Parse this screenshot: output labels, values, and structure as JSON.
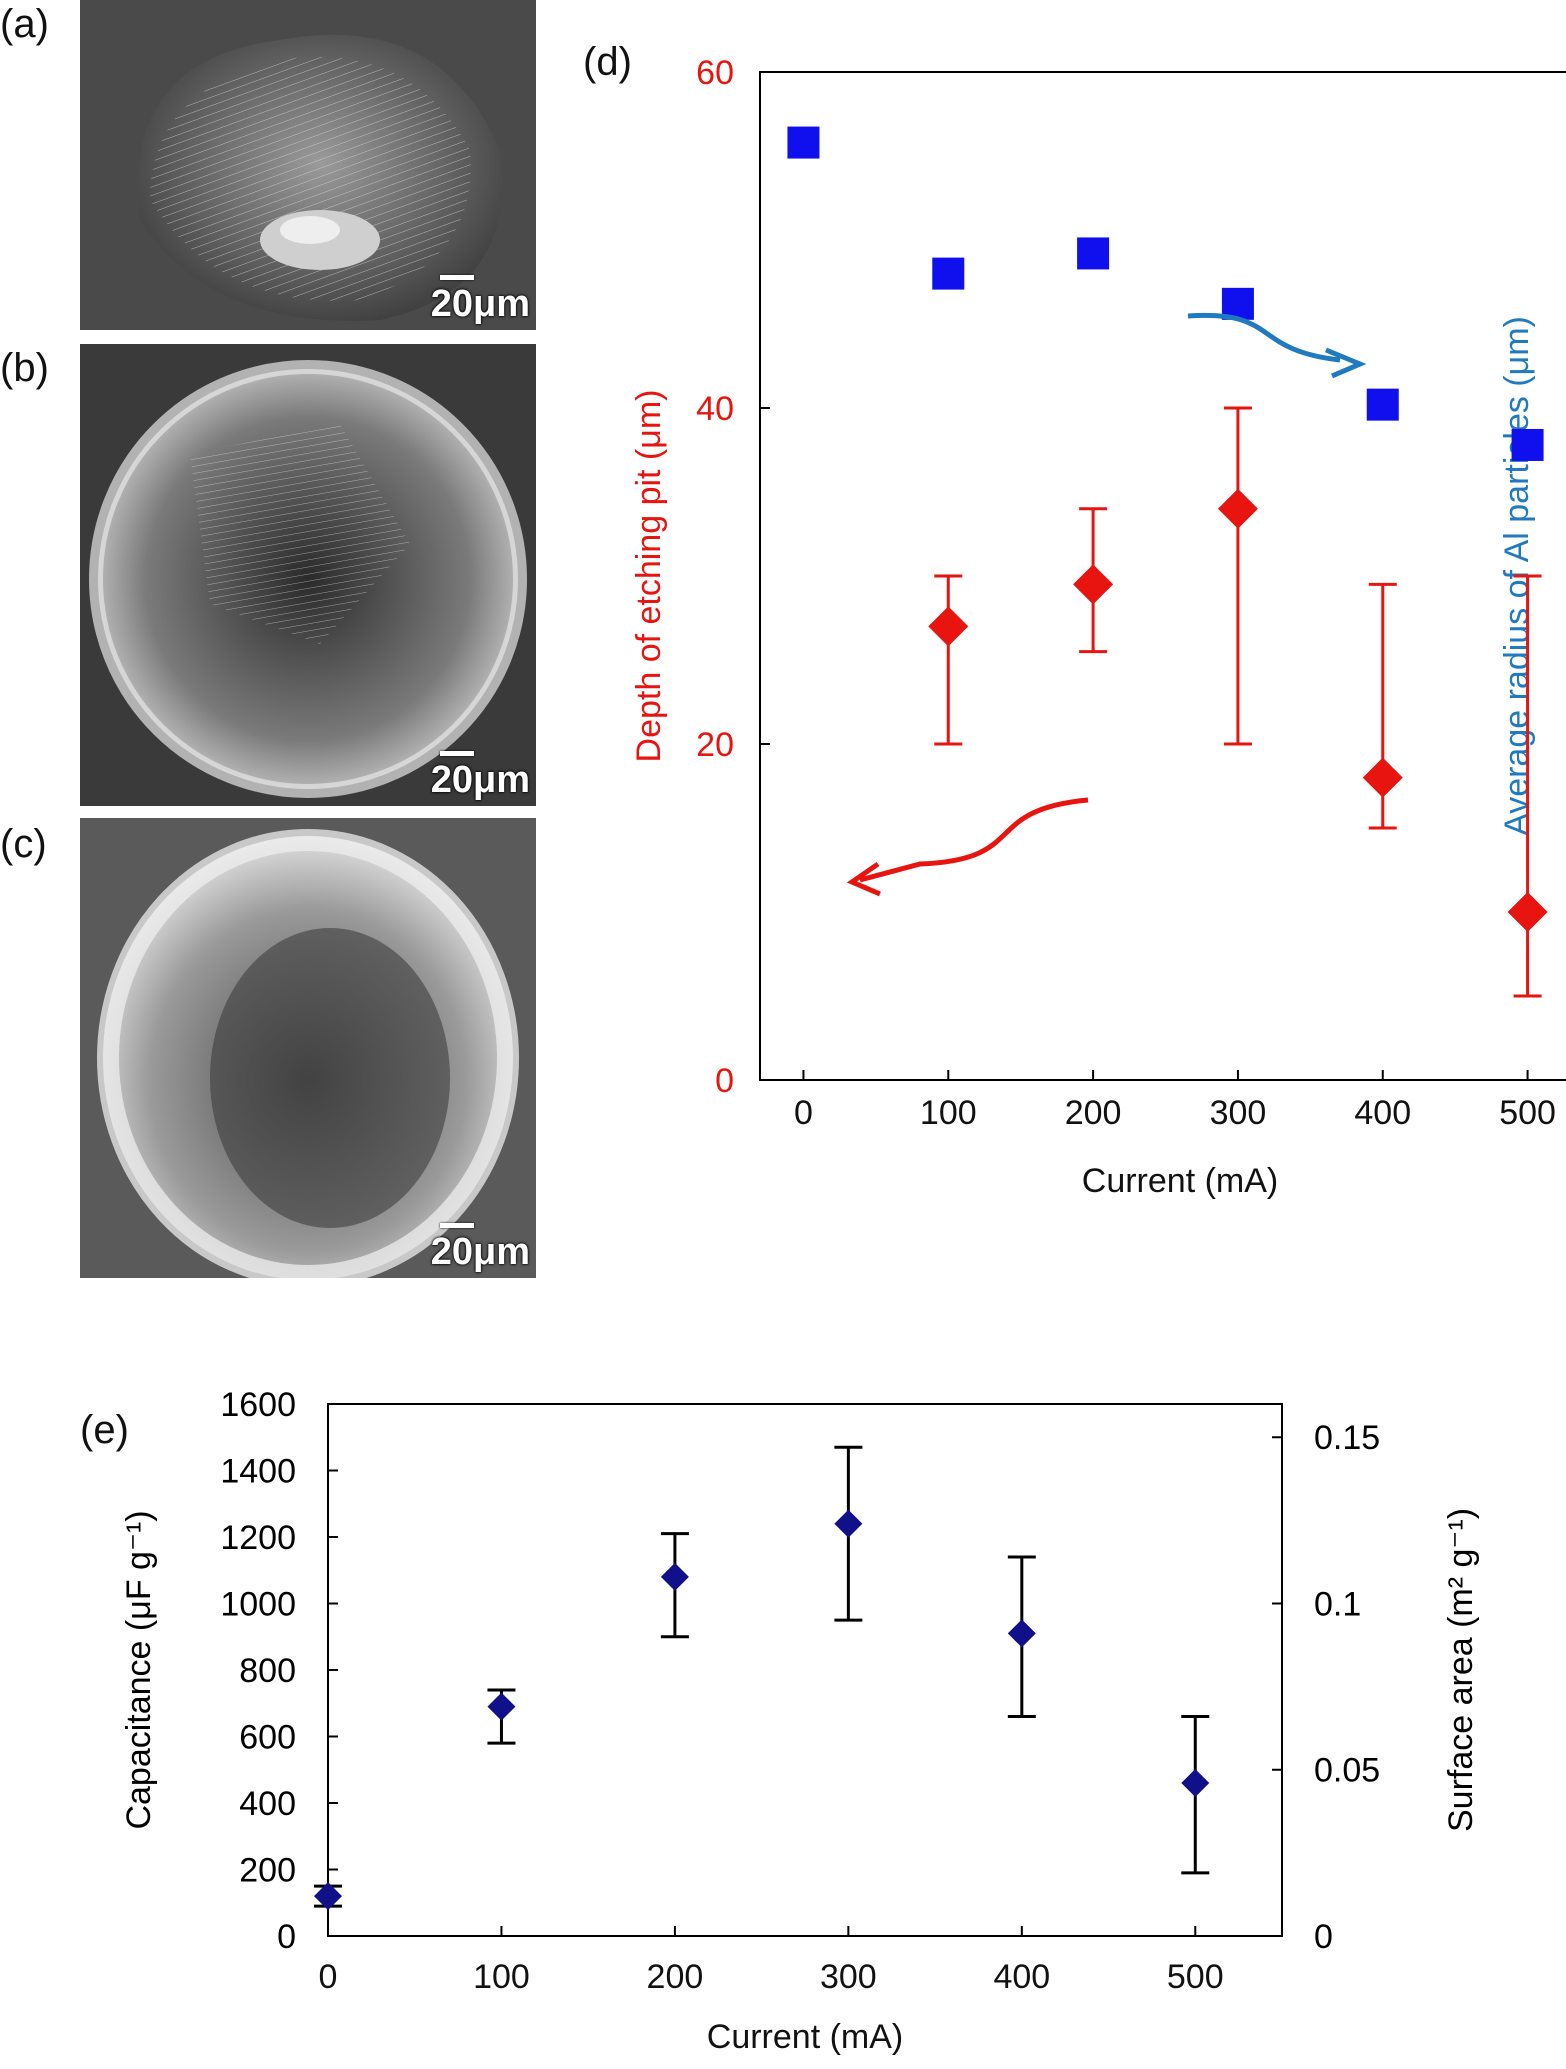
{
  "panels": {
    "a": {
      "label": "(a)",
      "scale": "20μm"
    },
    "b": {
      "label": "(b)",
      "scale": "20μm"
    },
    "c": {
      "label": "(c)",
      "scale": "20μm"
    }
  },
  "colors": {
    "red": "#e8140f",
    "blue": "#1f7ac0",
    "square": "#1010ee",
    "navy": "#10108a"
  },
  "chart_data": [
    {
      "panel_label": "(d)",
      "type": "scatter",
      "xlabel": "Current (mA)",
      "x_ticks": [
        0,
        100,
        200,
        300,
        400,
        500
      ],
      "xlim": [
        -30,
        550
      ],
      "left_axis": {
        "label": "Depth of etching pit (μm)",
        "ylim": [
          0,
          60
        ],
        "ticks": [
          0,
          20,
          40,
          60
        ],
        "color": "#e8140f"
      },
      "right_axis": {
        "label": "Average radius of Al particles (μm)",
        "ylim": [
          80,
          130
        ],
        "ticks": [
          80,
          90,
          100,
          110,
          120,
          130
        ],
        "color": "#1f7ac0"
      },
      "series": [
        {
          "axis": "left",
          "marker": "diamond",
          "color": "#e8140f",
          "x": [
            100,
            200,
            300,
            400,
            500
          ],
          "y": [
            27.0,
            29.5,
            34.0,
            18.0,
            10.0
          ],
          "err_low": [
            20.0,
            25.5,
            20.0,
            15.0,
            5.0
          ],
          "err_high": [
            30.0,
            34.0,
            40.0,
            29.5,
            30.0
          ]
        },
        {
          "axis": "right",
          "marker": "square",
          "color": "#1010ee",
          "x": [
            0,
            100,
            200,
            300,
            400,
            500
          ],
          "y": [
            126.5,
            120.0,
            121.0,
            118.5,
            113.5,
            111.5
          ]
        }
      ]
    },
    {
      "panel_label": "(e)",
      "type": "scatter",
      "xlabel": "Current (mA)",
      "x_ticks": [
        0,
        100,
        200,
        300,
        400,
        500
      ],
      "xlim": [
        0,
        550
      ],
      "left_axis": {
        "label": "Capacitance (μF g⁻¹)",
        "ylim": [
          0,
          1600
        ],
        "ticks": [
          0,
          200,
          400,
          600,
          800,
          1000,
          1200,
          1400,
          1600
        ],
        "color": "#000000"
      },
      "right_axis": {
        "label": "Surface area (m² g⁻¹)",
        "ylim": [
          0,
          0.16
        ],
        "ticks": [
          0,
          0.05,
          0.1,
          0.15
        ],
        "tick_labels": [
          "0",
          "0.05",
          "0.1",
          "0.15"
        ],
        "color": "#000000"
      },
      "series": [
        {
          "axis": "left",
          "marker": "diamond",
          "color": "#10108a",
          "x": [
            0,
            100,
            200,
            300,
            400,
            500
          ],
          "y": [
            120,
            690,
            1080,
            1240,
            910,
            460
          ],
          "err_low": [
            90,
            580,
            900,
            950,
            660,
            190
          ],
          "err_high": [
            150,
            740,
            1210,
            1470,
            1140,
            660
          ]
        }
      ]
    }
  ]
}
